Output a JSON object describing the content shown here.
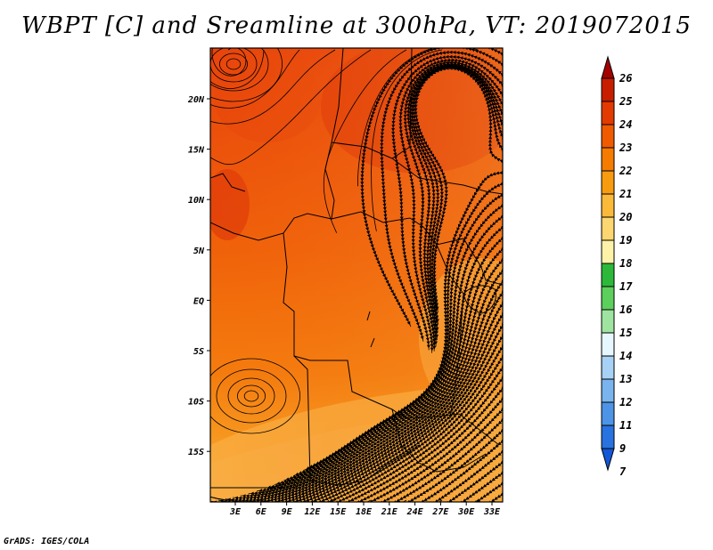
{
  "title": "WBPT [C] and Sreamline at 300hPa, VT: 2019072015",
  "footer": "GrADS: IGES/COLA",
  "map": {
    "lon_ticks": [
      "3E",
      "6E",
      "9E",
      "12E",
      "15E",
      "18E",
      "21E",
      "24E",
      "27E",
      "30E",
      "33E"
    ],
    "lat_ticks": [
      "20N",
      "15N",
      "10N",
      "5N",
      "EQ",
      "5S",
      "10S",
      "15S"
    ],
    "lon_range": [
      0,
      35
    ],
    "lat_range": [
      -20,
      25
    ]
  },
  "colorbar": {
    "labels": [
      "26",
      "25",
      "24",
      "23",
      "22",
      "21",
      "20",
      "19",
      "18",
      "17",
      "16",
      "15",
      "14",
      "13",
      "12",
      "11",
      "9",
      "7"
    ],
    "colors": [
      "#a50000",
      "#c81e00",
      "#e33a00",
      "#f05a00",
      "#f57c00",
      "#f89b10",
      "#fbb93a",
      "#fcd670",
      "#fdf2a8",
      "#2db83a",
      "#5ccf5c",
      "#9fe3a0",
      "#e6f7ff",
      "#a7d2f5",
      "#7ab4ee",
      "#4d94e6",
      "#2873df",
      "#1257d8"
    ]
  }
}
